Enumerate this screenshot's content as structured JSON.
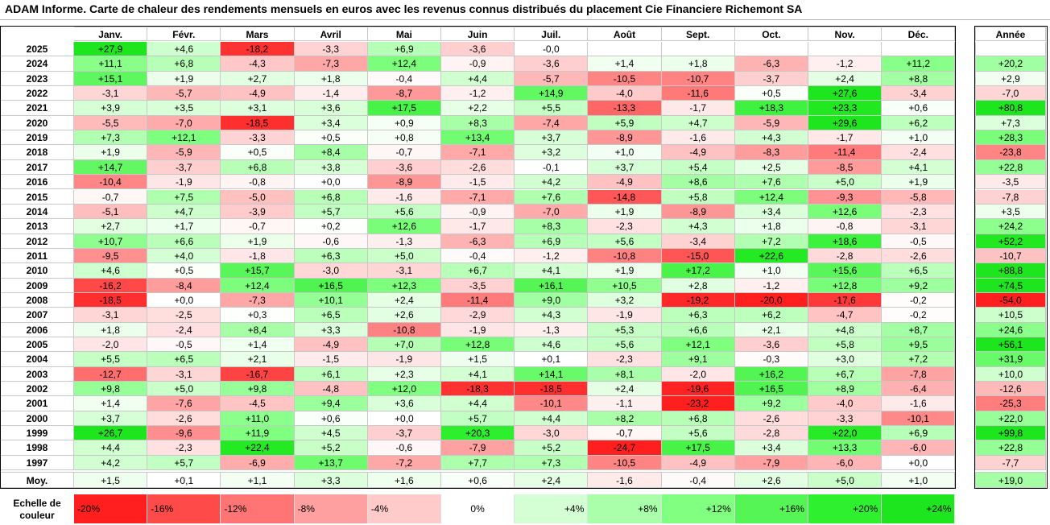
{
  "title": "ADAM Informe. Carte de chaleur des rendements mensuels en euros avec les revenus connus distribués du placement Cie Financiere Richemont SA",
  "chart_data": {
    "type": "heatmap",
    "months": [
      "Janv.",
      "Févr.",
      "Mars",
      "Avril",
      "Mai",
      "Juin",
      "Juil.",
      "Août",
      "Sept.",
      "Oct.",
      "Nov.",
      "Déc."
    ],
    "annual_header": "Année",
    "rows": [
      {
        "year": "2025",
        "months": [
          "+27,9",
          "+4,6",
          "-18,2",
          "-3,3",
          "+6,9",
          "-3,6",
          "-0,0",
          "",
          "",
          "",
          "",
          ""
        ],
        "annual": ""
      },
      {
        "year": "2024",
        "months": [
          "+11,1",
          "+6,8",
          "-4,3",
          "-7,3",
          "+12,4",
          "-0,9",
          "-3,6",
          "+1,4",
          "+1,8",
          "-6,3",
          "-1,2",
          "+11,2"
        ],
        "annual": "+20,2"
      },
      {
        "year": "2023",
        "months": [
          "+15,1",
          "+1,9",
          "+2,7",
          "+1,8",
          "-0,4",
          "+4,4",
          "-5,7",
          "-10,5",
          "-10,7",
          "-3,7",
          "+2,4",
          "+8,8"
        ],
        "annual": "+2,9"
      },
      {
        "year": "2022",
        "months": [
          "-3,1",
          "-5,7",
          "-4,9",
          "-1,4",
          "-8,7",
          "-1,2",
          "+14,9",
          "-4,0",
          "-11,6",
          "+0,5",
          "+27,6",
          "-3,4"
        ],
        "annual": "-7,0"
      },
      {
        "year": "2021",
        "months": [
          "+3,9",
          "+3,5",
          "+3,1",
          "+3,6",
          "+17,5",
          "+2,2",
          "+5,5",
          "-13,3",
          "-1,7",
          "+18,3",
          "+23,3",
          "+0,6"
        ],
        "annual": "+80,8"
      },
      {
        "year": "2020",
        "months": [
          "-5,5",
          "-7,0",
          "-18,5",
          "+3,4",
          "+0,9",
          "+8,3",
          "-7,4",
          "+5,9",
          "+4,7",
          "-5,9",
          "+29,6",
          "+6,2"
        ],
        "annual": "+7,3"
      },
      {
        "year": "2019",
        "months": [
          "+7,3",
          "+12,1",
          "-3,3",
          "+0,5",
          "+0,8",
          "+13,4",
          "+3,7",
          "-8,9",
          "-1,6",
          "+4,3",
          "-1,7",
          "+1,0"
        ],
        "annual": "+28,3"
      },
      {
        "year": "2018",
        "months": [
          "+1,9",
          "-5,9",
          "+0,5",
          "+8,4",
          "-0,7",
          "-7,1",
          "+3,2",
          "+1,0",
          "-4,9",
          "-8,3",
          "-11,4",
          "-2,4"
        ],
        "annual": "-23,8"
      },
      {
        "year": "2017",
        "months": [
          "+14,7",
          "-3,7",
          "+6,8",
          "+3,8",
          "-3,6",
          "-2,6",
          "-0,1",
          "+3,7",
          "+5,4",
          "+2,5",
          "-8,5",
          "+4,1"
        ],
        "annual": "+22,8"
      },
      {
        "year": "2016",
        "months": [
          "-10,4",
          "-1,9",
          "-0,8",
          "+0,0",
          "-8,9",
          "-1,5",
          "+4,2",
          "-4,9",
          "+8,6",
          "+7,6",
          "+5,0",
          "+1,9"
        ],
        "annual": "-3,5"
      },
      {
        "year": "2015",
        "months": [
          "-0,7",
          "+7,5",
          "-5,0",
          "+6,8",
          "-1,6",
          "-7,1",
          "+7,6",
          "-14,8",
          "+5,8",
          "+12,4",
          "-9,3",
          "-5,8"
        ],
        "annual": "-7,8"
      },
      {
        "year": "2014",
        "months": [
          "-5,1",
          "+4,7",
          "-3,9",
          "+5,7",
          "+5,6",
          "-0,9",
          "-7,0",
          "+1,9",
          "-8,9",
          "+3,4",
          "+12,6",
          "-2,3"
        ],
        "annual": "+3,5"
      },
      {
        "year": "2013",
        "months": [
          "+2,7",
          "+1,7",
          "-0,7",
          "+0,2",
          "+12,6",
          "-1,7",
          "+8,3",
          "-2,3",
          "+4,3",
          "+1,8",
          "-0,8",
          "-3,1"
        ],
        "annual": "+24,2"
      },
      {
        "year": "2012",
        "months": [
          "+10,7",
          "+6,6",
          "+1,9",
          "-0,6",
          "-1,3",
          "-6,3",
          "+6,9",
          "+5,6",
          "-3,4",
          "+7,2",
          "+18,6",
          "-0,5"
        ],
        "annual": "+52,2"
      },
      {
        "year": "2011",
        "months": [
          "-9,5",
          "+4,0",
          "-1,8",
          "+6,3",
          "+5,0",
          "-0,4",
          "-1,2",
          "-10,8",
          "-15,0",
          "+22,6",
          "-2,8",
          "-2,6"
        ],
        "annual": "-10,7"
      },
      {
        "year": "2010",
        "months": [
          "+4,6",
          "+0,5",
          "+15,7",
          "-3,0",
          "-3,1",
          "+6,7",
          "+4,1",
          "+1,9",
          "+17,2",
          "+1,0",
          "+15,6",
          "+6,5"
        ],
        "annual": "+88,8"
      },
      {
        "year": "2009",
        "months": [
          "-16,2",
          "-8,4",
          "+12,4",
          "+16,5",
          "+12,3",
          "-3,5",
          "+16,1",
          "+10,5",
          "+2,8",
          "-1,2",
          "+12,8",
          "+9,2"
        ],
        "annual": "+74,5"
      },
      {
        "year": "2008",
        "months": [
          "-18,5",
          "+0,0",
          "-7,3",
          "+10,1",
          "+2,4",
          "-11,4",
          "+9,0",
          "+3,2",
          "-19,2",
          "-20,0",
          "-17,6",
          "-0,2"
        ],
        "annual": "-54,0"
      },
      {
        "year": "2007",
        "months": [
          "-3,1",
          "-2,5",
          "+0,3",
          "+6,5",
          "+2,6",
          "-2,9",
          "+4,3",
          "-1,9",
          "+6,3",
          "+6,2",
          "-4,7",
          "-0,2"
        ],
        "annual": "+10,5"
      },
      {
        "year": "2006",
        "months": [
          "+1,8",
          "-2,4",
          "+8,4",
          "+3,3",
          "-10,8",
          "-1,9",
          "-1,3",
          "+5,3",
          "+6,6",
          "+2,1",
          "+4,8",
          "+8,7"
        ],
        "annual": "+24,6"
      },
      {
        "year": "2005",
        "months": [
          "-2,0",
          "-0,5",
          "+1,4",
          "-4,9",
          "+7,0",
          "+12,8",
          "+4,6",
          "+5,6",
          "+12,1",
          "-3,6",
          "+5,8",
          "+9,5"
        ],
        "annual": "+56,1"
      },
      {
        "year": "2004",
        "months": [
          "+5,5",
          "+6,5",
          "+2,1",
          "-1,5",
          "-1,9",
          "+1,5",
          "+0,1",
          "-2,3",
          "+9,1",
          "-0,3",
          "+3,0",
          "+7,2"
        ],
        "annual": "+31,9"
      },
      {
        "year": "2003",
        "months": [
          "-12,7",
          "-3,1",
          "-16,7",
          "+6,1",
          "+2,3",
          "+4,1",
          "+14,1",
          "+8,1",
          "-2,0",
          "+16,2",
          "+6,7",
          "-7,8"
        ],
        "annual": "+10,0"
      },
      {
        "year": "2002",
        "months": [
          "+9,8",
          "+5,0",
          "+9,8",
          "-4,8",
          "+12,0",
          "-18,3",
          "-18,5",
          "+2,4",
          "-19,6",
          "+16,5",
          "+8,9",
          "-6,4"
        ],
        "annual": "-12,6"
      },
      {
        "year": "2001",
        "months": [
          "+1,4",
          "-7,6",
          "-4,5",
          "+9,4",
          "+3,6",
          "+4,4",
          "-10,1",
          "-1,1",
          "-23,2",
          "+9,2",
          "-4,0",
          "-1,6"
        ],
        "annual": "-25,3"
      },
      {
        "year": "2000",
        "months": [
          "+3,7",
          "-2,6",
          "+11,0",
          "+0,6",
          "+0,0",
          "+5,7",
          "+4,4",
          "+8,2",
          "+6,8",
          "-2,6",
          "-3,3",
          "-10,1"
        ],
        "annual": "+22,0"
      },
      {
        "year": "1999",
        "months": [
          "+26,7",
          "-9,6",
          "+11,9",
          "+4,5",
          "-3,7",
          "+20,3",
          "-3,0",
          "-0,7",
          "+5,6",
          "-2,8",
          "+22,0",
          "+6,9"
        ],
        "annual": "+99,8"
      },
      {
        "year": "1998",
        "months": [
          "+4,4",
          "-2,3",
          "+22,4",
          "+5,2",
          "-0,6",
          "-7,9",
          "+5,2",
          "-24,7",
          "+17,5",
          "+3,4",
          "+13,3",
          "-6,0"
        ],
        "annual": "+22,8"
      },
      {
        "year": "1997",
        "months": [
          "+4,2",
          "+5,7",
          "-6,9",
          "+13,7",
          "-7,2",
          "+7,7",
          "+7,3",
          "-10,5",
          "-4,9",
          "-7,9",
          "-6,0",
          "+0,0"
        ],
        "annual": "-7,7"
      }
    ],
    "average": {
      "label": "Moy.",
      "months": [
        "+1,5",
        "+0,1",
        "+1,1",
        "+3,3",
        "+1,6",
        "+0,6",
        "+2,4",
        "-1,6",
        "-0,4",
        "+2,6",
        "+5,0",
        "+1,0"
      ],
      "annual": "+19,0"
    },
    "scale": {
      "label": "Echelle de couleur",
      "stops": [
        {
          "text": "-20%",
          "value": -20,
          "color": "#ff1f1f"
        },
        {
          "text": "-16%",
          "value": -16,
          "color": "#ff4a4a"
        },
        {
          "text": "-12%",
          "value": -12,
          "color": "#ff7575"
        },
        {
          "text": "-8%",
          "value": -8,
          "color": "#ffa0a0"
        },
        {
          "text": "-4%",
          "value": -4,
          "color": "#ffcaca"
        },
        {
          "text": "0%",
          "value": 0,
          "color": "#ffffff"
        },
        {
          "text": "+4%",
          "value": 4,
          "color": "#d4ffd4"
        },
        {
          "text": "+8%",
          "value": 8,
          "color": "#aaffaa"
        },
        {
          "text": "+12%",
          "value": 12,
          "color": "#80ff80"
        },
        {
          "text": "+16%",
          "value": 16,
          "color": "#55f555"
        },
        {
          "text": "+20%",
          "value": 20,
          "color": "#2ef02e"
        },
        {
          "text": "+24%",
          "value": 24,
          "color": "#1ee61e"
        }
      ]
    }
  }
}
